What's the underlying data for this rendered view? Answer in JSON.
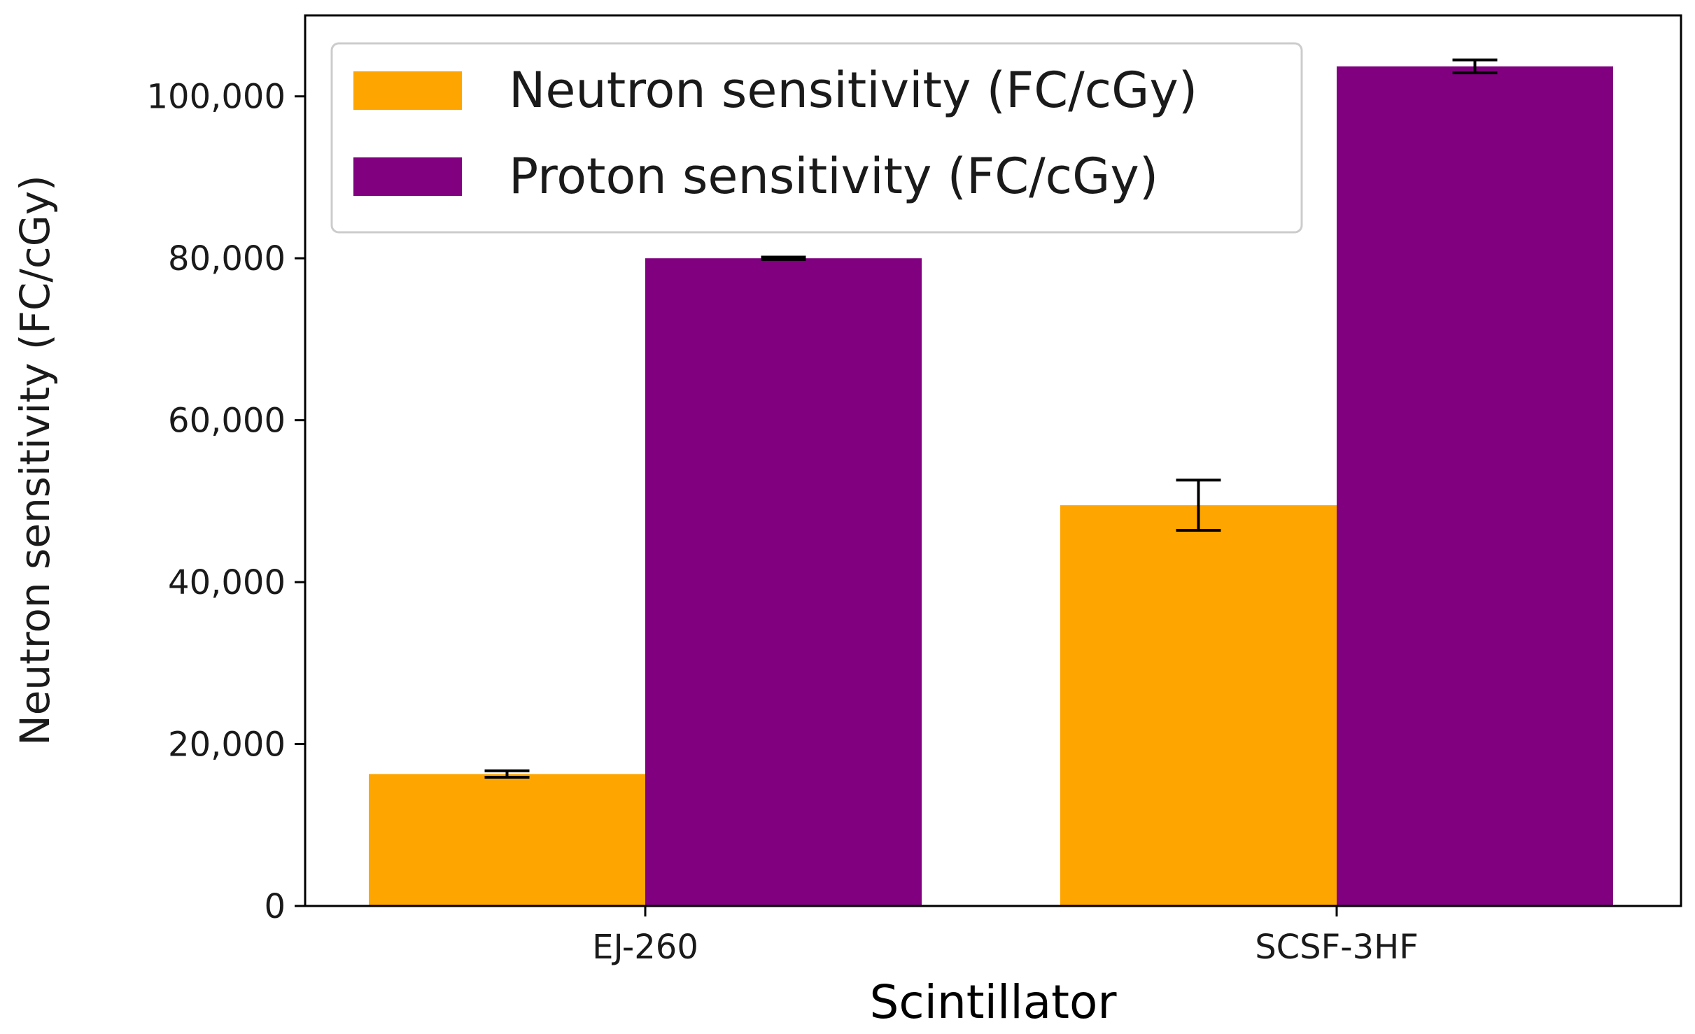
{
  "chart_data": {
    "type": "bar",
    "title": "",
    "xlabel": "Scintillator",
    "ylabel": "Neutron sensitivity (FC/cGy)",
    "categories": [
      "EJ-260",
      "SCSF-3HF"
    ],
    "series": [
      {
        "name": "Neutron sensitivity (FC/cGy)",
        "color": "#FFA500",
        "values": [
          16300,
          49500
        ],
        "errors": [
          400,
          3100
        ]
      },
      {
        "name": "Proton sensitivity (FC/cGy)",
        "color": "#800080",
        "values": [
          80000,
          103700
        ],
        "errors": [
          150,
          800
        ]
      }
    ],
    "ylim": [
      0,
      110000
    ],
    "yticks": [
      0,
      20000,
      40000,
      60000,
      80000,
      100000
    ],
    "ytick_labels": [
      "0",
      "20,000",
      "40,000",
      "60,000",
      "80,000",
      "100,000"
    ],
    "legend_position": "upper-left",
    "grid": false
  }
}
